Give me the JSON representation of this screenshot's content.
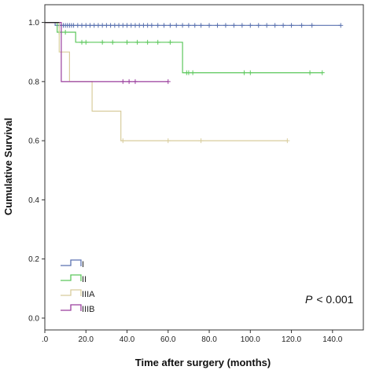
{
  "chart_data": {
    "type": "line",
    "subtype": "kaplan-meier",
    "xlabel": "Time after surgery (months)",
    "ylabel": "Cumulative Survival",
    "xlim": [
      0,
      155
    ],
    "ylim": [
      -0.04,
      1.06
    ],
    "x_ticks": [
      0,
      20,
      40,
      60,
      80,
      100,
      120,
      140
    ],
    "x_tick_labels": [
      ".0",
      "20.0",
      "40.0",
      "60.0",
      "80.0",
      "100.0",
      "120.0",
      "140.0"
    ],
    "y_ticks": [
      0,
      0.2,
      0.4,
      0.6,
      0.8,
      1.0
    ],
    "y_tick_labels": [
      "0.0",
      "0.2",
      "0.4",
      "0.6",
      "0.8",
      "1.0"
    ],
    "grid": false,
    "legend_position": "bottom-left",
    "annotation": {
      "italic": "P",
      "text": "< 0.001"
    },
    "series": [
      {
        "name": "I",
        "color": "#5a72b0",
        "steps": [
          [
            0,
            1.0
          ],
          [
            5,
            1.0
          ],
          [
            5,
            0.99
          ],
          [
            144,
            0.99
          ]
        ],
        "censored": [
          7,
          8,
          9,
          10,
          11,
          12,
          13,
          14,
          16,
          18,
          20,
          22,
          24,
          26,
          28,
          30,
          32,
          34,
          36,
          38,
          40,
          42,
          44,
          46,
          48,
          50,
          52,
          55,
          58,
          61,
          64,
          67,
          70,
          73,
          76,
          80,
          84,
          88,
          92,
          96,
          100,
          104,
          108,
          112,
          116,
          120,
          125,
          130,
          144
        ]
      },
      {
        "name": "II",
        "color": "#5cc85c",
        "steps": [
          [
            0,
            1.0
          ],
          [
            6,
            1.0
          ],
          [
            6,
            0.967
          ],
          [
            15,
            0.967
          ],
          [
            15,
            0.933
          ],
          [
            67,
            0.933
          ],
          [
            67,
            0.83
          ],
          [
            135,
            0.83
          ]
        ],
        "censored": [
          7,
          8,
          10,
          18,
          20,
          28,
          33,
          40,
          45,
          50,
          55,
          61,
          69,
          70,
          72,
          97,
          100,
          129,
          135
        ]
      },
      {
        "name": "IIIA",
        "color": "#d8cc9c",
        "steps": [
          [
            0,
            1.0
          ],
          [
            7,
            1.0
          ],
          [
            7,
            0.9
          ],
          [
            12,
            0.9
          ],
          [
            12,
            0.8
          ],
          [
            23,
            0.8
          ],
          [
            23,
            0.7
          ],
          [
            37,
            0.7
          ],
          [
            37,
            0.6
          ],
          [
            118,
            0.6
          ]
        ],
        "censored": [
          38,
          60,
          76,
          118
        ]
      },
      {
        "name": "IIIB",
        "color": "#9a3f9e",
        "steps": [
          [
            0,
            1.0
          ],
          [
            8,
            1.0
          ],
          [
            8,
            0.8
          ],
          [
            60,
            0.8
          ]
        ],
        "censored": [
          38,
          41,
          44,
          60
        ]
      },
      {
        "name": "",
        "color": "#222222",
        "steps": [
          [
            0,
            1.0
          ],
          [
            7,
            1.0
          ]
        ],
        "censored": []
      }
    ]
  }
}
